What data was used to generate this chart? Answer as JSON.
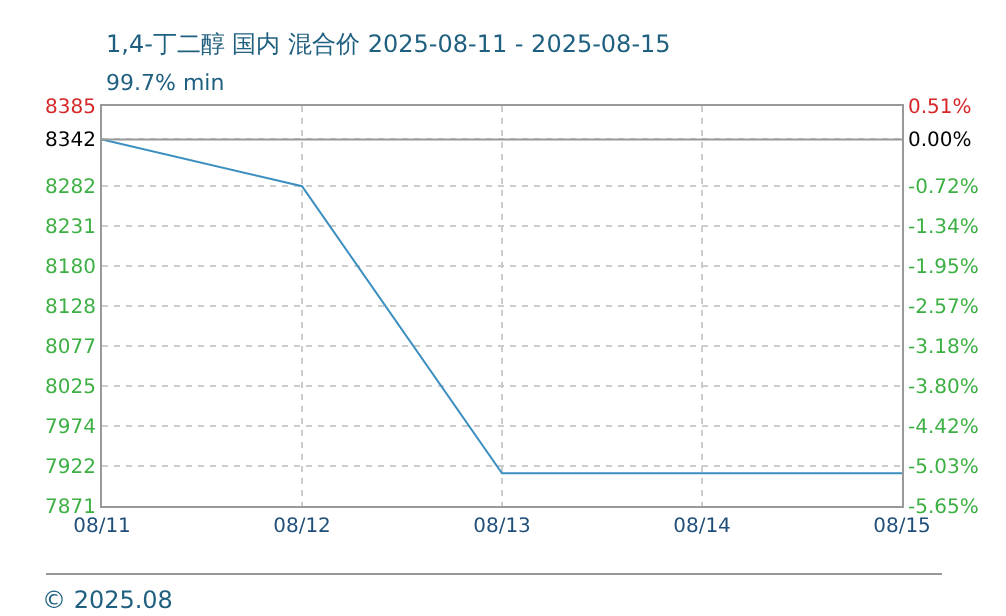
{
  "chart_data": {
    "type": "line",
    "title": "1,4-丁二醇 国内 混合价 2025-08-11 - 2025-08-15",
    "subtitle": "99.7% min",
    "categories": [
      "08/11",
      "08/12",
      "08/13",
      "08/14",
      "08/15"
    ],
    "series": [
      {
        "color": "#3a8fc0",
        "values": [
          8342,
          8282,
          7913,
          7913,
          7913
        ]
      }
    ],
    "ylim": [
      7871,
      8385
    ],
    "yticks": [
      7871,
      7922,
      7974,
      8025,
      8077,
      8128,
      8180,
      8231,
      8282,
      8342,
      8385
    ],
    "y2lim": [
      -5.65,
      0.51
    ],
    "y2ticks": [
      {
        "value": -5.65,
        "label": "-5.65%"
      },
      {
        "value": -5.03,
        "label": "-5.03%"
      },
      {
        "value": -4.42,
        "label": "-4.42%"
      },
      {
        "value": -3.8,
        "label": "-3.80%"
      },
      {
        "value": -3.18,
        "label": "-3.18%"
      },
      {
        "value": -2.57,
        "label": "-2.57%"
      },
      {
        "value": -1.95,
        "label": "-1.95%"
      },
      {
        "value": -1.34,
        "label": "-1.34%"
      },
      {
        "value": -0.72,
        "label": "-0.72%"
      },
      {
        "value": 0.0,
        "label": "0.00%"
      },
      {
        "value": 0.51,
        "label": "0.51%"
      }
    ],
    "ref_lines": [
      {
        "axis": "y",
        "value": 8342,
        "color": "#999999"
      }
    ],
    "grid": true,
    "legend": false,
    "marker": "none",
    "line_style": "solid",
    "annotations": [
      "© 2025.08"
    ]
  }
}
